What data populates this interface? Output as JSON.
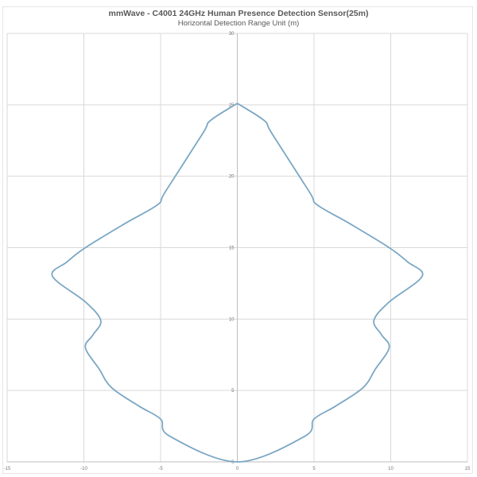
{
  "chart_data": {
    "type": "line",
    "title": "mmWave - C4001 24GHz Human Presence Detection Sensor(25m)",
    "subtitle": "Horizontal Detection Range Unit (m)",
    "xlabel": "",
    "ylabel": "",
    "xlim": [
      -15,
      15
    ],
    "ylim": [
      0,
      30
    ],
    "xticks": [
      -15,
      -10,
      -5,
      0,
      5,
      10,
      15
    ],
    "yticks": [
      0,
      5,
      10,
      15,
      20,
      25,
      30
    ],
    "grid": true,
    "legend": "none",
    "line_color": "#7ba7c4",
    "grid_color": "#d9d9d9",
    "series": [
      {
        "x": [
          0,
          1.75,
          2.25,
          4.7,
          5.2,
          7.3,
          9.9,
          11.1,
          12.05,
          9.9,
          8.9,
          9.4,
          9.9,
          9.0,
          8.2,
          6.4,
          5.0,
          4.4,
          0,
          -4.4,
          -5.0,
          -6.4,
          -8.2,
          -9.0,
          -9.9,
          -9.4,
          -8.9,
          -9.9,
          -12.05,
          -11.1,
          -9.9,
          -7.3,
          -5.2,
          -4.7,
          -2.25,
          -1.75,
          0
        ],
        "y": [
          25.1,
          23.9,
          23.0,
          18.9,
          18.0,
          16.7,
          15.0,
          14.0,
          13.0,
          11.2,
          9.9,
          8.9,
          8.0,
          6.5,
          5.2,
          3.9,
          3.0,
          1.8,
          0,
          1.8,
          3.0,
          3.9,
          5.2,
          6.5,
          8.0,
          8.9,
          9.9,
          11.2,
          13.0,
          14.0,
          15.0,
          16.7,
          18.0,
          18.9,
          23.0,
          23.9,
          25.1
        ]
      }
    ]
  }
}
